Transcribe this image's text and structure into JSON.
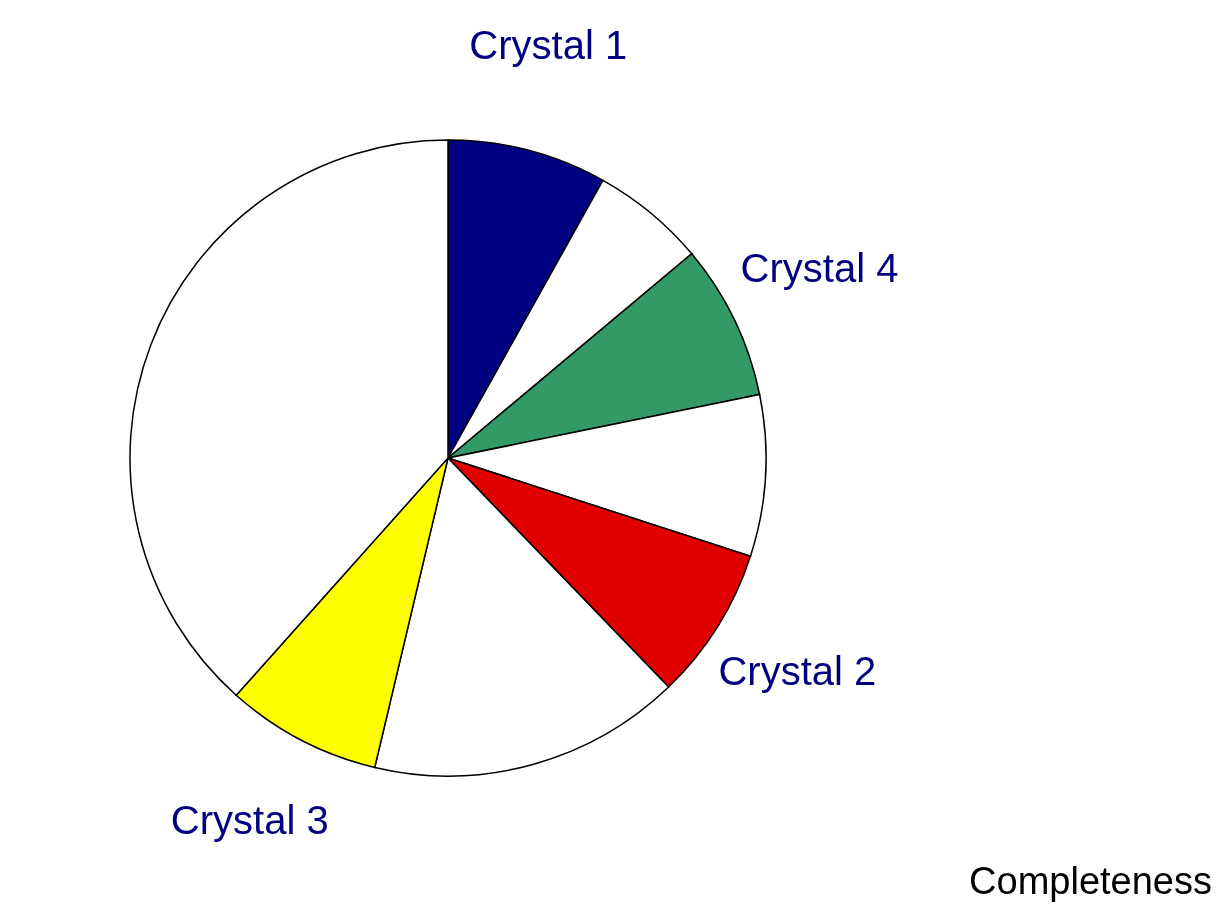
{
  "chart_data": {
    "type": "pie",
    "categories": [
      "Crystal 1",
      null,
      "Crystal 4",
      null,
      "Crystal 2",
      null,
      "Crystal 3",
      null
    ],
    "values": [
      8.1,
      5.8,
      7.9,
      8.2,
      7.8,
      15.9,
      7.9,
      38.4
    ],
    "colors": [
      "#000080",
      "#ffffff",
      "#339966",
      "#ffffff",
      "#e00000",
      "#ffffff",
      "#ffff00",
      "#ffffff"
    ],
    "annotations": [
      "Completeness"
    ]
  }
}
